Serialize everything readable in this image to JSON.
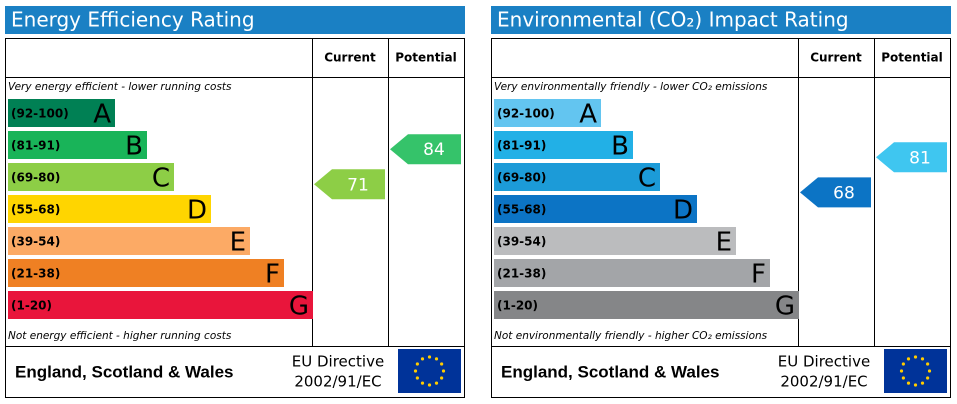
{
  "panels": [
    {
      "title": "Energy Efficiency Rating",
      "columns": [
        "Current",
        "Potential"
      ],
      "top_note": "Very energy efficient - lower running costs",
      "bottom_note": "Not energy efficient - higher running costs",
      "bands": [
        {
          "range": "(92-100)",
          "letter": "A",
          "color": "#008054"
        },
        {
          "range": "(81-91)",
          "letter": "B",
          "color": "#19b459"
        },
        {
          "range": "(69-80)",
          "letter": "C",
          "color": "#8dce46"
        },
        {
          "range": "(55-68)",
          "letter": "D",
          "color": "#ffd500"
        },
        {
          "range": "(39-54)",
          "letter": "E",
          "color": "#fcaa65"
        },
        {
          "range": "(21-38)",
          "letter": "F",
          "color": "#ef8023"
        },
        {
          "range": "(1-20)",
          "letter": "G",
          "color": "#e9153b"
        }
      ],
      "current": 71,
      "current_color": "#8dce46",
      "potential": 84,
      "potential_color": "#35c36a",
      "footer": {
        "region": "England, Scotland & Wales",
        "directive": "EU Directive",
        "directive_code": "2002/91/EC"
      }
    },
    {
      "title": "Environmental (CO₂) Impact Rating",
      "columns": [
        "Current",
        "Potential"
      ],
      "top_note": "Very environmentally friendly - lower CO₂ emissions",
      "bottom_note": "Not environmentally friendly - higher CO₂ emissions",
      "bands": [
        {
          "range": "(92-100)",
          "letter": "A",
          "color": "#63c5f0"
        },
        {
          "range": "(81-91)",
          "letter": "B",
          "color": "#22b0e6"
        },
        {
          "range": "(69-80)",
          "letter": "C",
          "color": "#1c9bd8"
        },
        {
          "range": "(55-68)",
          "letter": "D",
          "color": "#0c74c5"
        },
        {
          "range": "(39-54)",
          "letter": "E",
          "color": "#bbbcbe"
        },
        {
          "range": "(21-38)",
          "letter": "F",
          "color": "#a3a5a8"
        },
        {
          "range": "(1-20)",
          "letter": "G",
          "color": "#858688"
        }
      ],
      "current": 68,
      "current_color": "#0c74c5",
      "potential": 81,
      "potential_color": "#3fc6f0",
      "footer": {
        "region": "England, Scotland & Wales",
        "directive": "EU Directive",
        "directive_code": "2002/91/EC"
      }
    }
  ]
}
